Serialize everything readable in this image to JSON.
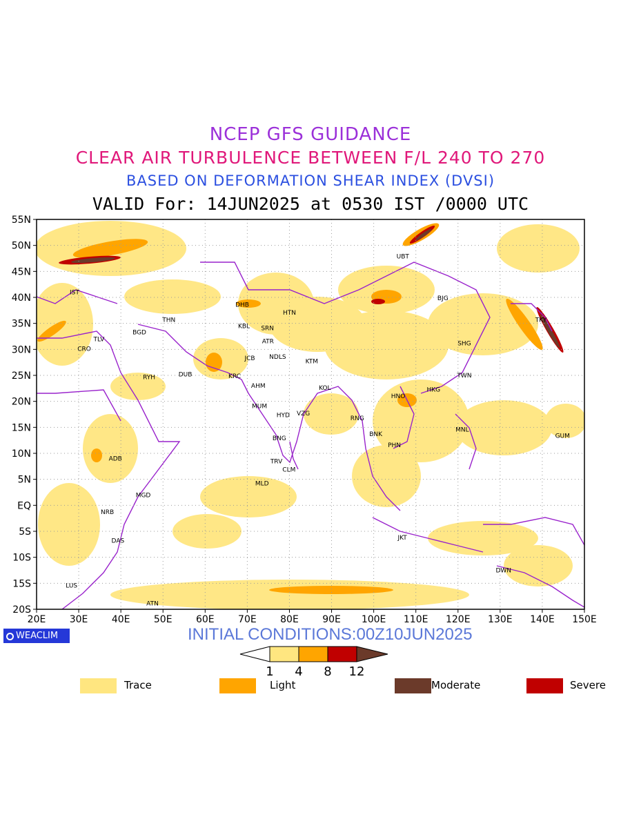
{
  "titles": {
    "line1": "NCEP GFS GUIDANCE",
    "line2": "CLEAR AIR TURBULENCE BETWEEN F/L 240 TO 270",
    "line3": "BASED ON DEFORMATION SHEAR INDEX (DVSI)",
    "line4": "VALID For: 14JUN2025 at 0530 IST /0000 UTC"
  },
  "colors": {
    "line1": "#9b30d9",
    "line2": "#e0187a",
    "line3": "#2b4fe0",
    "trace": "#ffe680",
    "light": "#ffa500",
    "severe": "#c00000",
    "moderate": "#6b3a2a",
    "boundary": "#9922cc"
  },
  "map": {
    "lon_labels": [
      "20E",
      "30E",
      "40E",
      "50E",
      "60E",
      "70E",
      "80E",
      "90E",
      "100E",
      "110E",
      "120E",
      "130E",
      "140E",
      "150E"
    ],
    "lat_labels": [
      "55N",
      "50N",
      "45N",
      "40N",
      "35N",
      "30N",
      "25N",
      "20N",
      "15N",
      "10N",
      "5N",
      "EQ",
      "5S",
      "10S",
      "15S",
      "20S"
    ],
    "stations": [
      {
        "id": "IST",
        "lon": 29.0,
        "lat": 41.0
      },
      {
        "id": "TLV",
        "lon": 34.8,
        "lat": 32.0
      },
      {
        "id": "CRO",
        "lon": 31.3,
        "lat": 30.1
      },
      {
        "id": "BGD",
        "lon": 44.4,
        "lat": 33.3
      },
      {
        "id": "THN",
        "lon": 51.4,
        "lat": 35.7
      },
      {
        "id": "RYH",
        "lon": 46.7,
        "lat": 24.7
      },
      {
        "id": "DUB",
        "lon": 55.3,
        "lat": 25.2
      },
      {
        "id": "DHB",
        "lon": 68.8,
        "lat": 38.6
      },
      {
        "id": "KBL",
        "lon": 69.2,
        "lat": 34.5
      },
      {
        "id": "SRN",
        "lon": 74.8,
        "lat": 34.1
      },
      {
        "id": "HTN",
        "lon": 80.0,
        "lat": 37.1
      },
      {
        "id": "ATR",
        "lon": 74.9,
        "lat": 31.6
      },
      {
        "id": "JCB",
        "lon": 70.6,
        "lat": 28.3
      },
      {
        "id": "NDLS",
        "lon": 77.2,
        "lat": 28.6
      },
      {
        "id": "KTM",
        "lon": 85.3,
        "lat": 27.7
      },
      {
        "id": "KRC",
        "lon": 67.0,
        "lat": 24.9
      },
      {
        "id": "AHM",
        "lon": 72.6,
        "lat": 23.0
      },
      {
        "id": "KOL",
        "lon": 88.4,
        "lat": 22.6
      },
      {
        "id": "MUM",
        "lon": 72.9,
        "lat": 19.1
      },
      {
        "id": "HYD",
        "lon": 78.5,
        "lat": 17.4
      },
      {
        "id": "VZG",
        "lon": 83.3,
        "lat": 17.7
      },
      {
        "id": "BNG",
        "lon": 77.6,
        "lat": 12.9
      },
      {
        "id": "TRV",
        "lon": 76.9,
        "lat": 8.5
      },
      {
        "id": "CLM",
        "lon": 79.9,
        "lat": 6.9
      },
      {
        "id": "MLD",
        "lon": 73.5,
        "lat": 4.2
      },
      {
        "id": "RNG",
        "lon": 96.1,
        "lat": 16.8
      },
      {
        "id": "BNK",
        "lon": 100.5,
        "lat": 13.7
      },
      {
        "id": "PHN",
        "lon": 104.9,
        "lat": 11.6
      },
      {
        "id": "HNO",
        "lon": 105.8,
        "lat": 21.0
      },
      {
        "id": "HKG",
        "lon": 114.2,
        "lat": 22.3
      },
      {
        "id": "TWN",
        "lon": 121.5,
        "lat": 25.0
      },
      {
        "id": "SHG",
        "lon": 121.5,
        "lat": 31.2
      },
      {
        "id": "BJG",
        "lon": 116.4,
        "lat": 39.9
      },
      {
        "id": "UBT",
        "lon": 106.9,
        "lat": 47.9
      },
      {
        "id": "TKY",
        "lon": 139.7,
        "lat": 35.7
      },
      {
        "id": "MNL",
        "lon": 121.0,
        "lat": 14.6
      },
      {
        "id": "GUM",
        "lon": 144.8,
        "lat": 13.4
      },
      {
        "id": "ADB",
        "lon": 38.7,
        "lat": 9.0
      },
      {
        "id": "MGD",
        "lon": 45.3,
        "lat": 2.0
      },
      {
        "id": "NRB",
        "lon": 36.8,
        "lat": -1.3
      },
      {
        "id": "DAS",
        "lon": 39.3,
        "lat": -6.8
      },
      {
        "id": "LUS",
        "lon": 28.3,
        "lat": -15.4
      },
      {
        "id": "ATN",
        "lon": 47.5,
        "lat": -18.9
      },
      {
        "id": "JKT",
        "lon": 106.8,
        "lat": -6.2
      },
      {
        "id": "DWN",
        "lon": 130.8,
        "lat": -12.5
      }
    ]
  },
  "initial_conditions": "INITIAL CONDITIONS:00Z10JUN2025",
  "watermark": "WEACLIM",
  "colorbar": {
    "ticks": [
      "1",
      "4",
      "8",
      "12"
    ]
  },
  "legend": [
    {
      "label": "Trace"
    },
    {
      "label": "Light"
    },
    {
      "label": "Moderate"
    },
    {
      "label": "Severe"
    }
  ]
}
